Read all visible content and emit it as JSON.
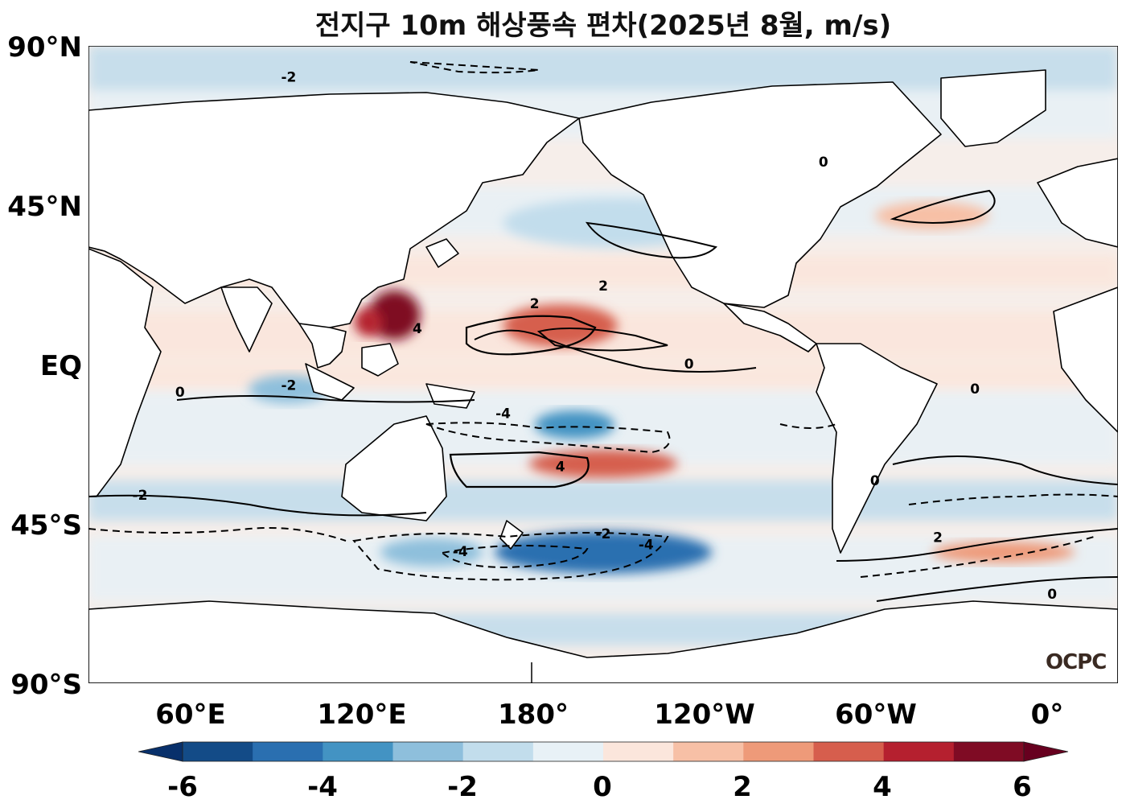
{
  "title": "전지구 10m 해상풍속 편차(2025년 8월, m/s)",
  "logo": "OCPC",
  "axes": {
    "y_ticks": [
      {
        "lat": 90,
        "label": "90°N"
      },
      {
        "lat": 45,
        "label": "45°N"
      },
      {
        "lat": 0,
        "label": "EQ"
      },
      {
        "lat": -45,
        "label": "45°S"
      },
      {
        "lat": -90,
        "label": "90°S"
      }
    ],
    "x_ticks": [
      {
        "lon": 60,
        "label": "60°E"
      },
      {
        "lon": 120,
        "label": "120°E"
      },
      {
        "lon": 180,
        "label": "180°"
      },
      {
        "lon": 240,
        "label": "120°W"
      },
      {
        "lon": 300,
        "label": "60°W"
      },
      {
        "lon": 360,
        "label": "0°"
      }
    ],
    "lon_range": [
      25,
      385
    ],
    "lat_range": [
      -90,
      90
    ]
  },
  "colorbar": {
    "levels": [
      -6,
      -5,
      -4,
      -3,
      -2,
      -1,
      0,
      1,
      2,
      3,
      4,
      5,
      6
    ],
    "colors": [
      "#134b87",
      "#2a6fb0",
      "#4393c3",
      "#8ebfdc",
      "#c2ddec",
      "#e8f1f6",
      "#fbe6dc",
      "#f7c0a6",
      "#ee9a79",
      "#d65e4d",
      "#b5202f",
      "#7f0b24"
    ],
    "under_color": "#08306b",
    "over_color": "#67001f",
    "tick_labels": [
      {
        "value": -6,
        "label": "-6"
      },
      {
        "value": -4,
        "label": "-4"
      },
      {
        "value": -2,
        "label": "-2"
      },
      {
        "value": 0,
        "label": "0"
      },
      {
        "value": 2,
        "label": "2"
      },
      {
        "value": 4,
        "label": "4"
      },
      {
        "value": 6,
        "label": "6"
      }
    ]
  },
  "anomaly_regions": [
    {
      "lon": 190,
      "lat": 11,
      "rlon": 20,
      "rlat": 6,
      "value": 3
    },
    {
      "lon": 132,
      "lat": 14,
      "rlon": 9,
      "rlat": 7,
      "value": 5
    },
    {
      "lon": 123,
      "lat": 12,
      "rlon": 5,
      "rlat": 4,
      "value": 4.5
    },
    {
      "lon": 205,
      "lat": -28,
      "rlon": 26,
      "rlat": 4,
      "value": 3
    },
    {
      "lon": 195,
      "lat": -17,
      "rlon": 14,
      "rlat": 4,
      "value": -3.5
    },
    {
      "lon": 205,
      "lat": -53,
      "rlon": 38,
      "rlat": 6,
      "value": -4.5
    },
    {
      "lon": 145,
      "lat": -53,
      "rlon": 18,
      "rlat": 4,
      "value": -3
    },
    {
      "lon": 95,
      "lat": -7,
      "rlon": 14,
      "rlat": 4,
      "value": -2.5
    },
    {
      "lon": 345,
      "lat": -53,
      "rlon": 25,
      "rlat": 3,
      "value": 2.5
    },
    {
      "lon": 210,
      "lat": 40,
      "rlon": 40,
      "rlat": 7,
      "value": -1.5
    },
    {
      "lon": 320,
      "lat": 42,
      "rlon": 20,
      "rlat": 4,
      "value": 1
    }
  ],
  "contour_labels": [
    {
      "lon": 95,
      "lat": 81,
      "text": "-2"
    },
    {
      "lon": 181,
      "lat": 17,
      "text": "2"
    },
    {
      "lon": 190,
      "lat": -29,
      "text": "4"
    },
    {
      "lon": 140,
      "lat": 10,
      "text": "4"
    },
    {
      "lon": 205,
      "lat": 22,
      "text": "2"
    },
    {
      "lon": 235,
      "lat": 0,
      "text": "0"
    },
    {
      "lon": 170,
      "lat": -14,
      "text": "-4"
    },
    {
      "lon": 220,
      "lat": -51,
      "text": "-4"
    },
    {
      "lon": 155,
      "lat": -53,
      "text": "-4"
    },
    {
      "lon": 205,
      "lat": -48,
      "text": "-2"
    },
    {
      "lon": 322,
      "lat": -49,
      "text": "2"
    },
    {
      "lon": 300,
      "lat": -33,
      "text": "0"
    },
    {
      "lon": 57,
      "lat": -8,
      "text": "0"
    },
    {
      "lon": 95,
      "lat": -6,
      "text": "-2"
    },
    {
      "lon": 282,
      "lat": 57,
      "text": "0"
    },
    {
      "lon": 362,
      "lat": -65,
      "text": "0"
    },
    {
      "lon": 335,
      "lat": -7,
      "text": "0"
    },
    {
      "lon": 43,
      "lat": -37,
      "text": "-2"
    }
  ]
}
